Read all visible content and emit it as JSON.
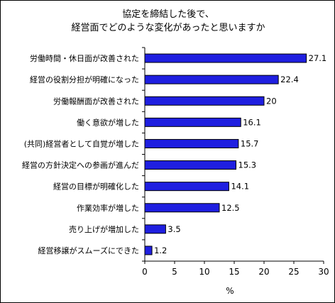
{
  "chart_data": {
    "type": "bar",
    "orientation": "horizontal",
    "title_lines": [
      "協定を締結した後で、",
      "経営面でどのような変化があったと思いますか"
    ],
    "categories": [
      "労働時間・休日面が改善された",
      "経営の役割分担が明確になった",
      "労働報酬面が改善された",
      "働く意欲が増した",
      "(共同)経営者として自覚が増した",
      "経営の方針決定への参画が進んだ",
      "経営の目標が明確化した",
      "作業効率が増した",
      "売り上げが増加した",
      "経営移譲がスムーズにできた"
    ],
    "values": [
      27.1,
      22.4,
      20,
      16.1,
      15.7,
      15.3,
      14.1,
      12.5,
      3.5,
      1.2
    ],
    "value_labels": [
      "27.1",
      "22.4",
      "20",
      "16.1",
      "15.7",
      "15.3",
      "14.1",
      "12.5",
      "3.5",
      "1.2"
    ],
    "xlim": [
      0,
      30
    ],
    "xticks": [
      0,
      5,
      10,
      15,
      20,
      25,
      30
    ],
    "xlabel": "%",
    "grid": false,
    "bar_color": "#1f1fe0"
  }
}
